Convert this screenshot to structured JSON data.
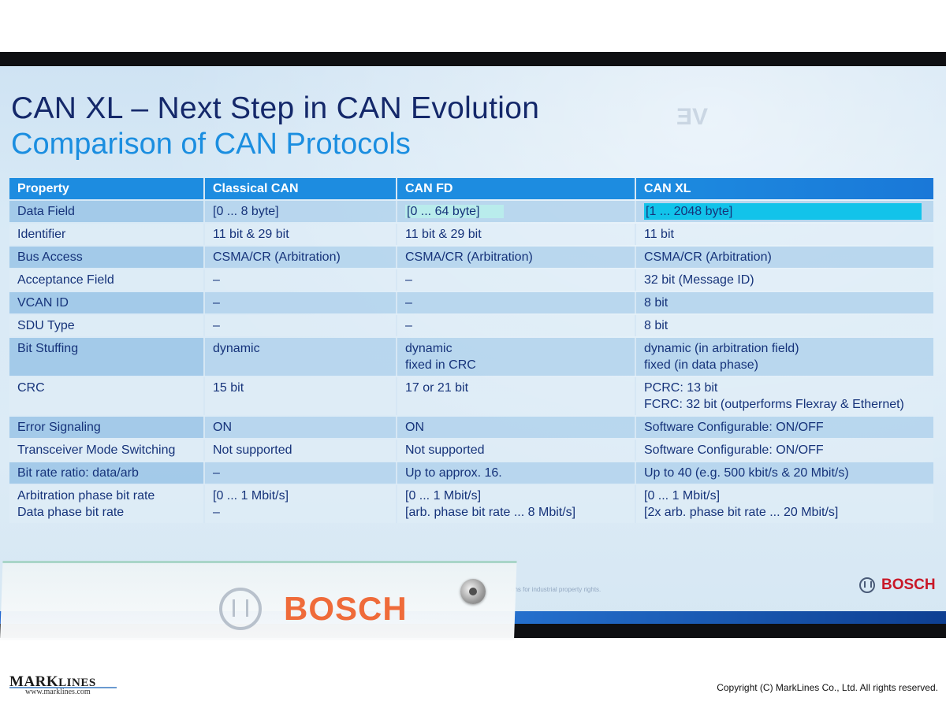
{
  "slide": {
    "title": "CAN XL – Next Step in CAN Evolution",
    "subtitle": "Comparison of CAN Protocols",
    "reflection_text": "VE",
    "confidential_note": "ons for industrial property rights.",
    "brand": "BOSCH"
  },
  "table": {
    "headers": [
      "Property",
      "Classical CAN",
      "CAN FD",
      "CAN XL"
    ],
    "rows": [
      {
        "property": [
          "Data Field"
        ],
        "classical": [
          "[0 ... 8 byte]"
        ],
        "fd": [
          "[0 ... 64 byte]"
        ],
        "xl": [
          "[1 ... 2048 byte]"
        ]
      },
      {
        "property": [
          "Identifier"
        ],
        "classical": [
          "11 bit & 29 bit"
        ],
        "fd": [
          "11 bit & 29 bit"
        ],
        "xl": [
          "11 bit"
        ]
      },
      {
        "property": [
          "Bus Access"
        ],
        "classical": [
          "CSMA/CR (Arbitration)"
        ],
        "fd": [
          "CSMA/CR (Arbitration)"
        ],
        "xl": [
          "CSMA/CR (Arbitration)"
        ]
      },
      {
        "property": [
          "Acceptance Field"
        ],
        "classical": [
          "–"
        ],
        "fd": [
          "–"
        ],
        "xl": [
          "32 bit (Message ID)"
        ]
      },
      {
        "property": [
          "VCAN ID"
        ],
        "classical": [
          "–"
        ],
        "fd": [
          "–"
        ],
        "xl": [
          "8 bit"
        ]
      },
      {
        "property": [
          "SDU Type"
        ],
        "classical": [
          "–"
        ],
        "fd": [
          "–"
        ],
        "xl": [
          "8 bit"
        ]
      },
      {
        "property": [
          "Bit Stuffing"
        ],
        "classical": [
          "dynamic"
        ],
        "fd": [
          "dynamic",
          "fixed in CRC"
        ],
        "xl": [
          "dynamic (in arbitration field)",
          "fixed        (in data phase)"
        ]
      },
      {
        "property": [
          "CRC"
        ],
        "classical": [
          "15 bit"
        ],
        "fd": [
          "17 or 21 bit"
        ],
        "xl": [
          "PCRC: 13 bit",
          "FCRC: 32 bit (outperforms Flexray & Ethernet)"
        ]
      },
      {
        "property": [
          "Error Signaling"
        ],
        "classical": [
          "ON"
        ],
        "fd": [
          "ON"
        ],
        "xl": [
          "Software Configurable: ON/OFF"
        ]
      },
      {
        "property": [
          "Transceiver Mode Switching"
        ],
        "classical": [
          "Not supported"
        ],
        "fd": [
          "Not supported"
        ],
        "xl": [
          "Software Configurable: ON/OFF"
        ]
      },
      {
        "property": [
          "Bit rate ratio: data/arb"
        ],
        "classical": [
          "–"
        ],
        "fd": [
          "Up to approx. 16."
        ],
        "xl": [
          "Up to 40 (e.g. 500 kbit/s & 20 Mbit/s)"
        ]
      },
      {
        "property": [
          "Arbitration phase bit rate",
          "Data          phase bit rate"
        ],
        "classical": [
          "[0 ... 1 Mbit/s]",
          "–"
        ],
        "fd": [
          "[0 ... 1 Mbit/s]",
          "[arb. phase bit rate ... 8 Mbit/s]"
        ],
        "xl": [
          "[0 ... 1 Mbit/s]",
          "[2x arb. phase bit rate ... 20 Mbit/s]"
        ]
      }
    ]
  },
  "stand": {
    "brand": "BOSCH"
  },
  "footer": {
    "logo_main": "MARK",
    "logo_tail": "LINES",
    "url": "www.marklines.com",
    "copyright": "Copyright (C) MarkLines Co., Ltd. All rights reserved."
  }
}
